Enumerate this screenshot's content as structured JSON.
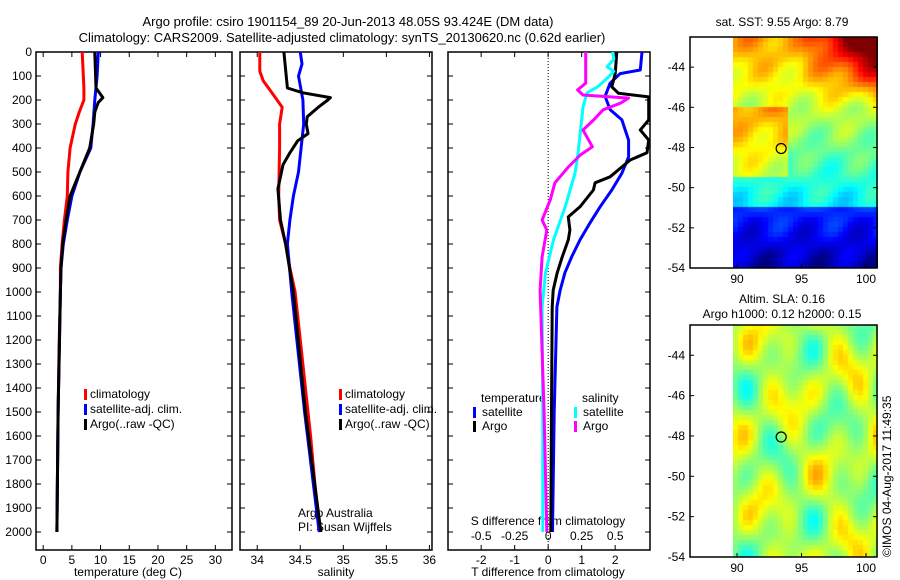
{
  "title": {
    "line1": "Argo profile: csiro 1901154_89 20-Jun-2013 48.05S 93.424E (DM data)",
    "line2": "Climatology: CARS2009. Satellite-adjusted climatology: synTS_20130620.nc (0.62d earlier)"
  },
  "colors": {
    "climatology": "#ff0000",
    "satellite": "#0000ff",
    "argo": "#000000",
    "sal_satellite": "#00ffff",
    "sal_argo": "#ff00ff"
  },
  "chart_data": [
    {
      "type": "line",
      "name": "temperature",
      "xlabel": "temperature (deg C)",
      "xlim": [
        -1.25,
        32.9
      ],
      "ylim": [
        0,
        2075
      ],
      "y_inverted": true,
      "xticks": [
        0,
        5,
        10,
        15,
        20,
        25,
        30
      ],
      "yticks": [
        0,
        100,
        200,
        300,
        400,
        500,
        600,
        700,
        800,
        900,
        1000,
        1100,
        1200,
        1300,
        1400,
        1500,
        1600,
        1700,
        1800,
        1900,
        2000
      ],
      "legend": [
        "climatology",
        "satellite-adj. clim.",
        "Argo(..raw -QC)"
      ],
      "series": [
        {
          "name": "climatology",
          "color": "#ff0000",
          "depth": [
            0,
            150,
            200,
            250,
            300,
            400,
            500,
            600,
            700,
            800,
            900,
            1000,
            1200,
            1500,
            2000
          ],
          "values": [
            6.8,
            7.1,
            7.1,
            6.3,
            5.6,
            4.7,
            4.3,
            4.2,
            3.7,
            3.3,
            3.0,
            3.0,
            2.8,
            2.6,
            2.4
          ]
        },
        {
          "name": "satellite-adj. clim.",
          "color": "#0000ff",
          "depth": [
            0,
            100,
            200,
            300,
            400,
            500,
            600,
            700,
            800,
            900,
            1000,
            1500,
            2000
          ],
          "values": [
            9.6,
            9.4,
            9.0,
            8.7,
            8.3,
            6.4,
            5.0,
            4.2,
            3.5,
            3.1,
            3.0,
            2.6,
            2.4
          ]
        },
        {
          "name": "Argo(..raw -QC)",
          "color": "#000000",
          "depth": [
            0,
            150,
            190,
            210,
            250,
            300,
            400,
            500,
            600,
            700,
            800,
            900,
            1000,
            1500,
            2000
          ],
          "values": [
            9.0,
            9.2,
            10.4,
            9.6,
            9.0,
            8.8,
            8.1,
            6.4,
            4.7,
            4.0,
            3.4,
            3.1,
            3.0,
            2.6,
            2.4
          ]
        }
      ]
    },
    {
      "type": "line",
      "name": "salinity",
      "xlabel": "salinity",
      "xlim": [
        33.8,
        36.03
      ],
      "ylim": [
        0,
        2075
      ],
      "y_inverted": true,
      "xticks": [
        34,
        34.5,
        35,
        35.5,
        36
      ],
      "legend": [
        "climatology",
        "satellite-adj. clim.",
        "Argo(..raw -QC)"
      ],
      "annotations": [
        "Argo Australia",
        "PI: Susan Wijffels"
      ],
      "series": [
        {
          "name": "climatology",
          "color": "#ff0000",
          "depth": [
            0,
            80,
            120,
            170,
            230,
            300,
            400,
            600,
            700,
            800,
            900,
            1000,
            1200,
            1400,
            1600,
            1800,
            2000
          ],
          "values": [
            34.03,
            34.03,
            34.07,
            34.17,
            34.29,
            34.26,
            34.26,
            34.25,
            34.26,
            34.33,
            34.38,
            34.44,
            34.5,
            34.56,
            34.62,
            34.67,
            34.73
          ]
        },
        {
          "name": "satellite-adj. clim.",
          "color": "#0000ff",
          "depth": [
            0,
            50,
            100,
            200,
            300,
            400,
            500,
            600,
            700,
            800,
            1000,
            1500,
            2000
          ],
          "values": [
            34.5,
            34.52,
            34.48,
            34.53,
            34.54,
            34.51,
            34.48,
            34.42,
            34.38,
            34.35,
            34.4,
            34.55,
            34.72
          ]
        },
        {
          "name": "Argo(..raw -QC)",
          "color": "#000000",
          "depth": [
            0,
            150,
            170,
            190,
            200,
            230,
            270,
            300,
            340,
            370,
            420,
            470,
            570,
            700,
            800,
            1000,
            1500,
            2000
          ],
          "values": [
            34.31,
            34.35,
            34.53,
            34.85,
            34.82,
            34.71,
            34.58,
            34.57,
            34.59,
            34.47,
            34.38,
            34.3,
            34.24,
            34.27,
            34.33,
            34.42,
            34.56,
            34.74
          ]
        }
      ]
    },
    {
      "type": "line",
      "name": "difference",
      "xlabel": "T difference from climatology",
      "x2label": "S difference from climatology",
      "xlim": [
        -2.99,
        3.04
      ],
      "x2lim": [
        -0.7475,
        0.76
      ],
      "ylim": [
        0,
        2075
      ],
      "y_inverted": true,
      "xticks": [
        -2,
        -1,
        0,
        1,
        2
      ],
      "x2ticks": [
        -0.5,
        -0.25,
        0,
        0.25,
        0.5
      ],
      "legend": {
        "temperature": "temperature",
        "salinity": "salinity",
        "satellite": "satellite",
        "argo": "Argo"
      },
      "series": [
        {
          "name": "temperature satellite",
          "axis": "T",
          "color": "#0000ff",
          "depth": [
            0,
            75,
            90,
            130,
            185,
            240,
            283,
            325,
            367,
            437,
            505,
            575,
            645,
            712,
            783,
            854,
            920,
            992,
            1062,
            1500,
            2000
          ],
          "values": [
            2.8,
            2.75,
            2.15,
            1.85,
            1.7,
            1.85,
            2.2,
            2.3,
            2.4,
            2.4,
            2.2,
            1.9,
            1.55,
            1.25,
            0.95,
            0.7,
            0.5,
            0.36,
            0.26,
            0.18,
            0.13
          ]
        },
        {
          "name": "temperature Argo",
          "axis": "T",
          "color": "#000000",
          "depth": [
            0,
            90,
            145,
            172,
            187,
            283,
            325,
            367,
            420,
            450,
            520,
            545,
            575,
            645,
            687,
            742,
            783,
            854,
            920,
            992,
            1062,
            1500,
            2000
          ],
          "values": [
            2.05,
            2.0,
            1.9,
            2.1,
            3.0,
            3.0,
            2.75,
            3.0,
            2.95,
            2.45,
            1.85,
            1.4,
            1.35,
            0.95,
            0.6,
            0.65,
            0.6,
            0.42,
            0.27,
            0.15,
            0.12,
            0.1,
            0.08
          ]
        },
        {
          "name": "salinity satellite",
          "axis": "S",
          "color": "#00ffff",
          "depth": [
            0,
            30,
            62,
            80,
            104,
            145,
            170,
            229,
            337,
            437,
            505,
            645,
            783,
            920,
            1062,
            1500,
            2000
          ],
          "values": [
            0.48,
            0.49,
            0.44,
            0.49,
            0.45,
            0.37,
            0.29,
            0.26,
            0.24,
            0.22,
            0.2,
            0.127,
            0.04,
            -0.02,
            -0.045,
            -0.04,
            -0.04
          ]
        },
        {
          "name": "salinity Argo",
          "axis": "S",
          "color": "#ff00ff",
          "depth": [
            0,
            130,
            158,
            179,
            192,
            213,
            241,
            283,
            325,
            395,
            429,
            479,
            545,
            617,
            700,
            742,
            854,
            992,
            1500,
            2000
          ],
          "values": [
            0.28,
            0.28,
            0.22,
            0.26,
            0.6,
            0.54,
            0.41,
            0.34,
            0.26,
            0.33,
            0.24,
            0.15,
            0.05,
            0.015,
            -0.045,
            -0.01,
            -0.045,
            -0.06,
            -0.03,
            -0.01
          ]
        }
      ]
    }
  ],
  "maps": {
    "sst": {
      "title": "sat. SST: 9.55 Argo: 8.79",
      "lat_ticks": [
        "-44",
        "-46",
        "-48",
        "-50",
        "-52",
        "-54"
      ],
      "lon_ticks": [
        "90",
        "95",
        "100"
      ],
      "argo_position": {
        "lon": 93.424,
        "lat": -48.05
      }
    },
    "sla": {
      "title1": "Altim. SLA: 0.16",
      "title2": "Argo h1000: 0.12 h2000: 0.15",
      "lat_ticks": [
        "-44",
        "-46",
        "-48",
        "-50",
        "-52",
        "-54"
      ],
      "lon_ticks": [
        "90",
        "95",
        "100"
      ],
      "argo_position": {
        "lon": 93.424,
        "lat": -48.05
      }
    }
  },
  "footer": {
    "copyright": "©IMOS 04-Aug-2017 11:49:35"
  }
}
